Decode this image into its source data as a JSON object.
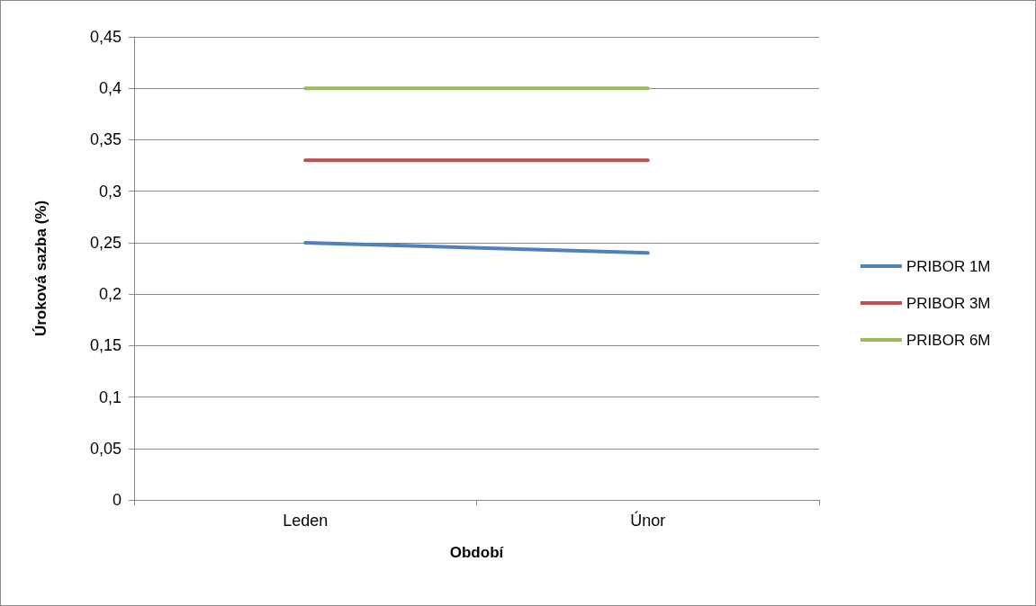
{
  "chart_data": {
    "type": "line",
    "xlabel": "Období",
    "ylabel": "Úroková sazba (%)",
    "categories": [
      "Leden",
      "Únor"
    ],
    "series": [
      {
        "name": "PRIBOR 1M",
        "color": "#4f81bd",
        "values": [
          0.25,
          0.24
        ]
      },
      {
        "name": "PRIBOR 3M",
        "color": "#c0504d",
        "values": [
          0.33,
          0.33
        ]
      },
      {
        "name": "PRIBOR 6M",
        "color": "#9bbb59",
        "values": [
          0.4,
          0.4
        ]
      }
    ],
    "ylim": [
      0,
      0.45
    ],
    "yticks": [
      {
        "value": 0,
        "label": "0"
      },
      {
        "value": 0.05,
        "label": "0,05"
      },
      {
        "value": 0.1,
        "label": "0,1"
      },
      {
        "value": 0.15,
        "label": "0,15"
      },
      {
        "value": 0.2,
        "label": "0,2"
      },
      {
        "value": 0.25,
        "label": "0,25"
      },
      {
        "value": 0.3,
        "label": "0,3"
      },
      {
        "value": 0.35,
        "label": "0,35"
      },
      {
        "value": 0.4,
        "label": "0,4"
      },
      {
        "value": 0.45,
        "label": "0,45"
      }
    ],
    "grid": "y",
    "legend": "right",
    "marker": "none",
    "line_style": "solid"
  }
}
